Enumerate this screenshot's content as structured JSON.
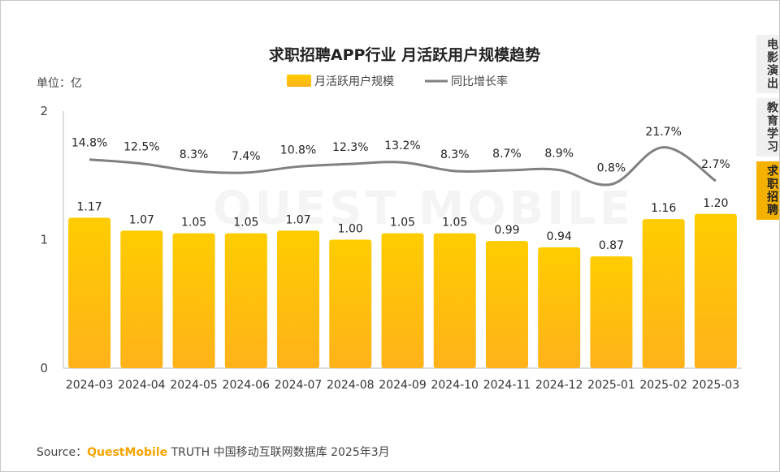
{
  "source": {
    "prefix": "Source：",
    "brand": "QuestMobile",
    "suffix": " TRUTH 中国移动互联网数据库 2025年3月"
  },
  "watermark": "QUEST MOBILE",
  "side_tabs": [
    {
      "label": "电影演出",
      "active": false
    },
    {
      "label": "教育学习",
      "active": false
    },
    {
      "label": "求职招聘",
      "active": true
    }
  ],
  "colors": {
    "bar_top": "#ffcc00",
    "bar_bottom": "#ffb21a",
    "line": "#808080",
    "accent": "#f5b100"
  },
  "chart_data": {
    "type": "bar",
    "title": "求职招聘APP行业 月活跃用户规模趋势",
    "unit_label": "单位：亿",
    "categories": [
      "2024-03",
      "2024-04",
      "2024-05",
      "2024-06",
      "2024-07",
      "2024-08",
      "2024-09",
      "2024-10",
      "2024-11",
      "2024-12",
      "2025-01",
      "2025-02",
      "2025-03"
    ],
    "series": [
      {
        "name": "月活跃用户规模",
        "type": "bar",
        "values": [
          1.17,
          1.07,
          1.05,
          1.05,
          1.07,
          1.0,
          1.05,
          1.05,
          0.99,
          0.94,
          0.87,
          1.16,
          1.2
        ],
        "labels": [
          "1.17",
          "1.07",
          "1.05",
          "1.05",
          "1.07",
          "1.00",
          "1.05",
          "1.05",
          "0.99",
          "0.94",
          "0.87",
          "1.16",
          "1.20"
        ]
      },
      {
        "name": "同比增长率",
        "type": "line",
        "values": [
          14.8,
          12.5,
          8.3,
          7.4,
          10.8,
          12.3,
          13.2,
          8.3,
          8.7,
          8.9,
          0.8,
          21.7,
          2.7
        ],
        "labels": [
          "14.8%",
          "12.5%",
          "8.3%",
          "7.4%",
          "10.8%",
          "12.3%",
          "13.2%",
          "8.3%",
          "8.7%",
          "8.9%",
          "0.8%",
          "21.7%",
          "2.7%"
        ]
      }
    ],
    "yticks": [
      "0",
      "1",
      "2"
    ],
    "ylim": [
      0,
      2
    ],
    "legend_position": "top"
  }
}
